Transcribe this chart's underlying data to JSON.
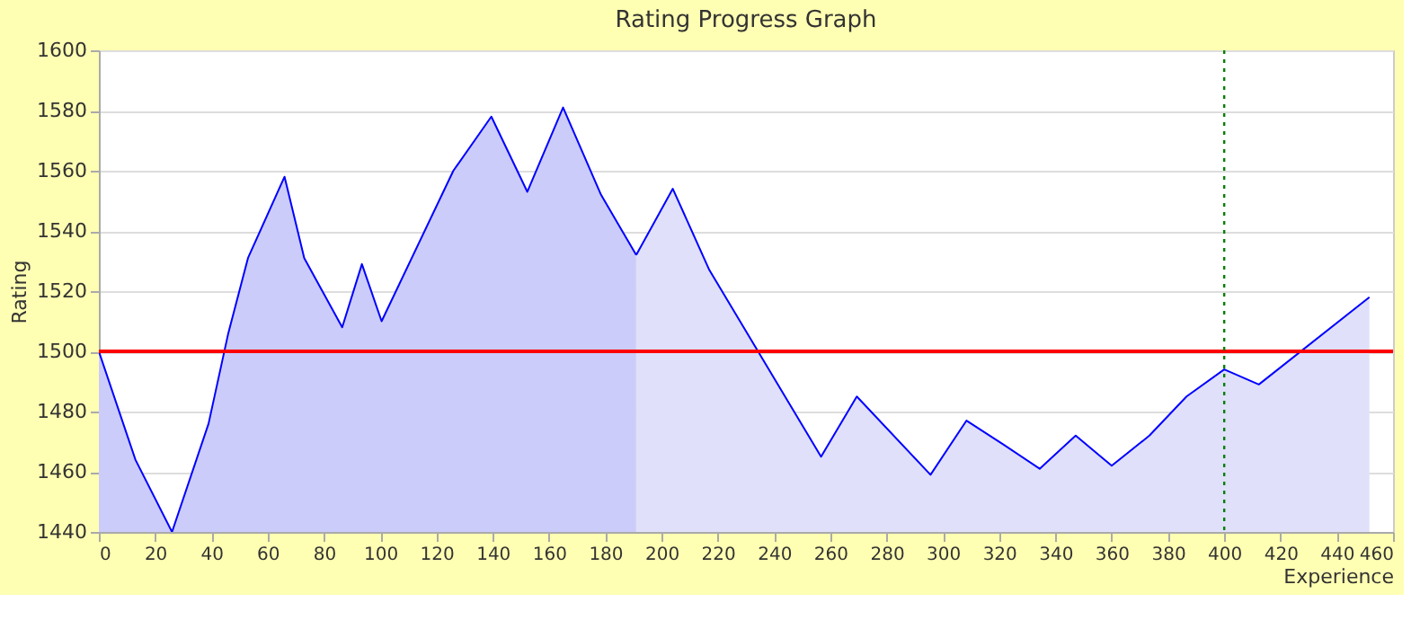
{
  "chart_data": {
    "type": "area",
    "title": "Rating Progress Graph",
    "xlabel": "Experience",
    "ylabel": "Rating",
    "xlim": [
      0,
      460
    ],
    "xticks": [
      0,
      20,
      40,
      60,
      80,
      100,
      120,
      140,
      160,
      180,
      200,
      220,
      240,
      260,
      280,
      300,
      320,
      340,
      360,
      380,
      400,
      420,
      440,
      460
    ],
    "ylim": [
      1440,
      1600
    ],
    "yticks": [
      1440,
      1460,
      1480,
      1500,
      1520,
      1540,
      1560,
      1580,
      1600
    ],
    "grid": "y",
    "series": [
      {
        "color": "#ccccfa",
        "x": [
          0,
          13,
          26,
          39,
          46,
          53,
          66,
          73,
          86.5,
          93.5,
          100.5,
          126,
          139.5,
          152.3,
          165,
          178.5,
          191
        ],
        "values": [
          1500,
          1464,
          1440,
          1476,
          1506,
          1531,
          1558,
          1531,
          1508,
          1529,
          1510,
          1560,
          1578,
          1553,
          1581,
          1552,
          1532
        ]
      },
      {
        "color": "#e0e0fa",
        "x": [
          191,
          204,
          217,
          256.7,
          269.4,
          295.6,
          308.4,
          321.6,
          334.4,
          347.2,
          360,
          373.4,
          386.6,
          400,
          412.3,
          451.6
        ],
        "values": [
          1532,
          1554,
          1527,
          1465,
          1485,
          1459,
          1477,
          1469,
          1461,
          1472,
          1462,
          1472,
          1485,
          1494,
          1489,
          1518
        ]
      }
    ],
    "ref_lines": [
      {
        "axis": "y",
        "value": 1500,
        "color": "#ff0000",
        "line_style": "solid"
      },
      {
        "axis": "x",
        "value": 400,
        "color": "#008000",
        "line_style": "dotted"
      }
    ]
  }
}
